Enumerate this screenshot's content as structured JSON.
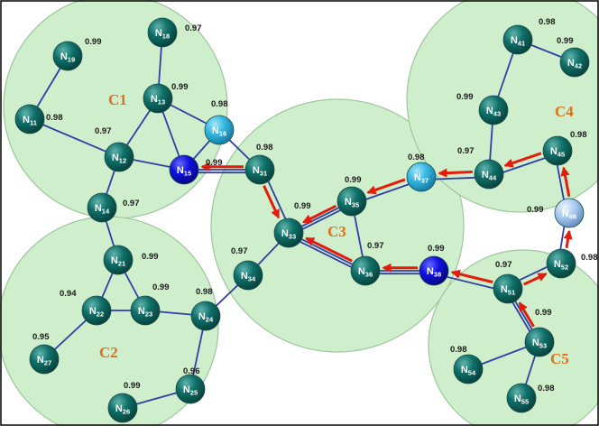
{
  "colors": {
    "node_default": "#0f6f68",
    "node_highlight_dark": "#1010e0",
    "node_highlight_cyan": "#36b8e2",
    "node_highlight_pale": "#a6c8ee",
    "cluster_fill": "#cfeecb",
    "cluster_label": "#e0701c",
    "edge": "#2f3fa8",
    "arrow": "#e51c0c"
  },
  "clusters": [
    {
      "id": "C1",
      "label": "C1"
    },
    {
      "id": "C2",
      "label": "C2"
    },
    {
      "id": "C3",
      "label": "C3"
    },
    {
      "id": "C4",
      "label": "C4"
    },
    {
      "id": "C5",
      "label": "C5"
    }
  ],
  "nodes": [
    {
      "id": "N19",
      "label": "19",
      "weight": "0.99",
      "style": "default"
    },
    {
      "id": "N18",
      "label": "18",
      "weight": "0.97",
      "style": "default"
    },
    {
      "id": "N13",
      "label": "13",
      "weight": "0.99",
      "style": "default"
    },
    {
      "id": "N11",
      "label": "11",
      "weight": "0.98",
      "style": "default"
    },
    {
      "id": "N12",
      "label": "12",
      "weight": "0.97",
      "style": "default"
    },
    {
      "id": "N16",
      "label": "16",
      "weight": "0.98",
      "style": "cyan"
    },
    {
      "id": "N15",
      "label": "15",
      "weight": "0.99",
      "style": "dark"
    },
    {
      "id": "N14",
      "label": "14",
      "weight": "0.97",
      "style": "default"
    },
    {
      "id": "N31",
      "label": "31",
      "weight": "0.98",
      "style": "default"
    },
    {
      "id": "N21",
      "label": "21",
      "weight": "0.99",
      "style": "default"
    },
    {
      "id": "N22",
      "label": "22",
      "weight": "0.94",
      "style": "default"
    },
    {
      "id": "N23",
      "label": "23",
      "weight": "0.99",
      "style": "default"
    },
    {
      "id": "N24",
      "label": "24",
      "weight": "0.98",
      "style": "default"
    },
    {
      "id": "N27",
      "label": "27",
      "weight": "0.95",
      "style": "default"
    },
    {
      "id": "N25",
      "label": "25",
      "weight": "0.96",
      "style": "default"
    },
    {
      "id": "N26",
      "label": "26",
      "weight": "0.99",
      "style": "default"
    },
    {
      "id": "N33",
      "label": "33",
      "weight": "0.99",
      "style": "default"
    },
    {
      "id": "N34",
      "label": "34",
      "weight": "0.97",
      "style": "default"
    },
    {
      "id": "N35",
      "label": "35",
      "weight": "0.99",
      "style": "default"
    },
    {
      "id": "N36",
      "label": "36",
      "weight": "0.97",
      "style": "default"
    },
    {
      "id": "N37",
      "label": "37",
      "weight": "0.98",
      "style": "cyan"
    },
    {
      "id": "N38",
      "label": "38",
      "weight": "0.99",
      "style": "dark"
    },
    {
      "id": "N41",
      "label": "41",
      "weight": "0.98",
      "style": "default"
    },
    {
      "id": "N42",
      "label": "42",
      "weight": "0.99",
      "style": "default"
    },
    {
      "id": "N43",
      "label": "43",
      "weight": "0.99",
      "style": "default"
    },
    {
      "id": "N44",
      "label": "44",
      "weight": "0.97",
      "style": "default"
    },
    {
      "id": "N45",
      "label": "45",
      "weight": "0.98",
      "style": "default"
    },
    {
      "id": "N46",
      "label": "46",
      "weight": "0.99",
      "style": "pale"
    },
    {
      "id": "N52",
      "label": "52",
      "weight": "0.98",
      "style": "default"
    },
    {
      "id": "N51",
      "label": "51",
      "weight": "0.97",
      "style": "default"
    },
    {
      "id": "N53",
      "label": "53",
      "weight": "0.99",
      "style": "default"
    },
    {
      "id": "N54",
      "label": "54",
      "weight": "0.98",
      "style": "default"
    },
    {
      "id": "N55",
      "label": "55",
      "weight": "0.98",
      "style": "default"
    }
  ],
  "edges": [
    [
      "N19",
      "N11"
    ],
    [
      "N18",
      "N13"
    ],
    [
      "N11",
      "N12"
    ],
    [
      "N12",
      "N13"
    ],
    [
      "N13",
      "N16"
    ],
    [
      "N13",
      "N15"
    ],
    [
      "N16",
      "N15"
    ],
    [
      "N12",
      "N15"
    ],
    [
      "N15",
      "N31"
    ],
    [
      "N16",
      "N31"
    ],
    [
      "N12",
      "N14"
    ],
    [
      "N14",
      "N21"
    ],
    [
      "N21",
      "N22"
    ],
    [
      "N21",
      "N23"
    ],
    [
      "N22",
      "N23"
    ],
    [
      "N22",
      "N27"
    ],
    [
      "N23",
      "N24"
    ],
    [
      "N24",
      "N34"
    ],
    [
      "N24",
      "N25"
    ],
    [
      "N25",
      "N26"
    ],
    [
      "N34",
      "N33"
    ],
    [
      "N33",
      "N35"
    ],
    [
      "N33",
      "N36"
    ],
    [
      "N35",
      "N36"
    ],
    [
      "N36",
      "N38"
    ],
    [
      "N41",
      "N42"
    ],
    [
      "N41",
      "N43"
    ],
    [
      "N43",
      "N44"
    ],
    [
      "N51",
      "N53"
    ],
    [
      "N53",
      "N54"
    ],
    [
      "N53",
      "N55"
    ]
  ],
  "arrows": [
    [
      "N31",
      "N15"
    ],
    [
      "N31",
      "N33"
    ],
    [
      "N35",
      "N33"
    ],
    [
      "N37",
      "N35"
    ],
    [
      "N44",
      "N37"
    ],
    [
      "N45",
      "N44"
    ],
    [
      "N46",
      "N45"
    ],
    [
      "N52",
      "N46"
    ],
    [
      "N51",
      "N52"
    ],
    [
      "N53",
      "N51"
    ],
    [
      "N51",
      "N38"
    ],
    [
      "N38",
      "N36"
    ],
    [
      "N36",
      "N33"
    ]
  ]
}
